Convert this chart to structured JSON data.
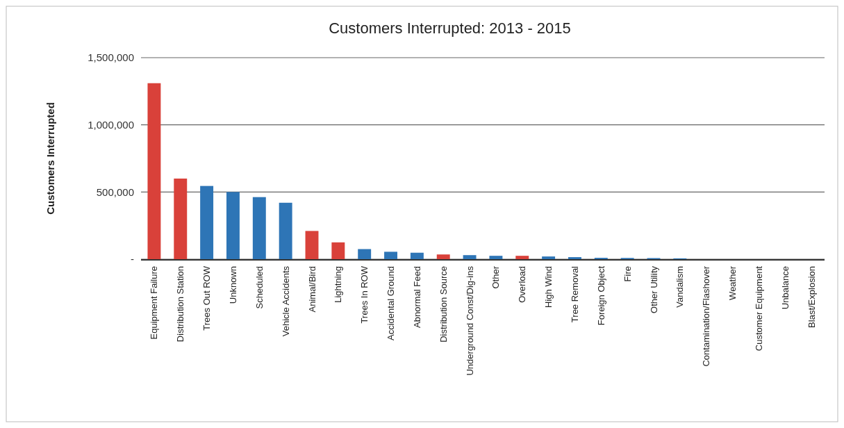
{
  "chart_data": {
    "type": "bar",
    "title": "Customers Interrupted:  2013 - 2015",
    "ylabel": "Customers Interrupted",
    "categories": [
      "Equipment Failure",
      "Distribution Station",
      "Trees Out ROW",
      "Unknown",
      "Scheduled",
      "Vehicle Accidents",
      "Animal/Bird",
      "Lightning",
      "Trees In ROW",
      "Accidental Ground",
      "Abnormal Feed",
      "Distribution Source",
      "Underground Const/Dig-ins",
      "Other",
      "Overload",
      "High Wind",
      "Tree Removal",
      "Foreign Object",
      "Fire",
      "Other Utility",
      "Vandalism",
      "Contamination/Flashover",
      "Weather",
      "Customer Equipment",
      "Unbalance",
      "Blast/Explosion"
    ],
    "values": [
      1310000,
      600000,
      545000,
      500000,
      462000,
      420000,
      210000,
      125000,
      75000,
      55000,
      48000,
      35000,
      30000,
      25000,
      25000,
      20000,
      15000,
      10000,
      9000,
      8000,
      6000,
      0,
      0,
      0,
      0,
      0
    ],
    "colors": [
      "#d9413a",
      "#d9413a",
      "#2e75b6",
      "#2e75b6",
      "#2e75b6",
      "#2e75b6",
      "#d9413a",
      "#d9413a",
      "#2e75b6",
      "#2e75b6",
      "#2e75b6",
      "#d9413a",
      "#2e75b6",
      "#2e75b6",
      "#d9413a",
      "#2e75b6",
      "#2e75b6",
      "#2e75b6",
      "#2e75b6",
      "#2e75b6",
      "#2e75b6",
      "#2e75b6",
      "#2e75b6",
      "#2e75b6",
      "#2e75b6",
      "#2e75b6"
    ],
    "ylim": [
      0,
      1500000
    ],
    "yticks": [
      {
        "value": 0,
        "label": "-"
      },
      {
        "value": 500000,
        "label": "500,000"
      },
      {
        "value": 1000000,
        "label": "1,000,000"
      },
      {
        "value": 1500000,
        "label": "1,500,000"
      }
    ],
    "grid": true
  }
}
